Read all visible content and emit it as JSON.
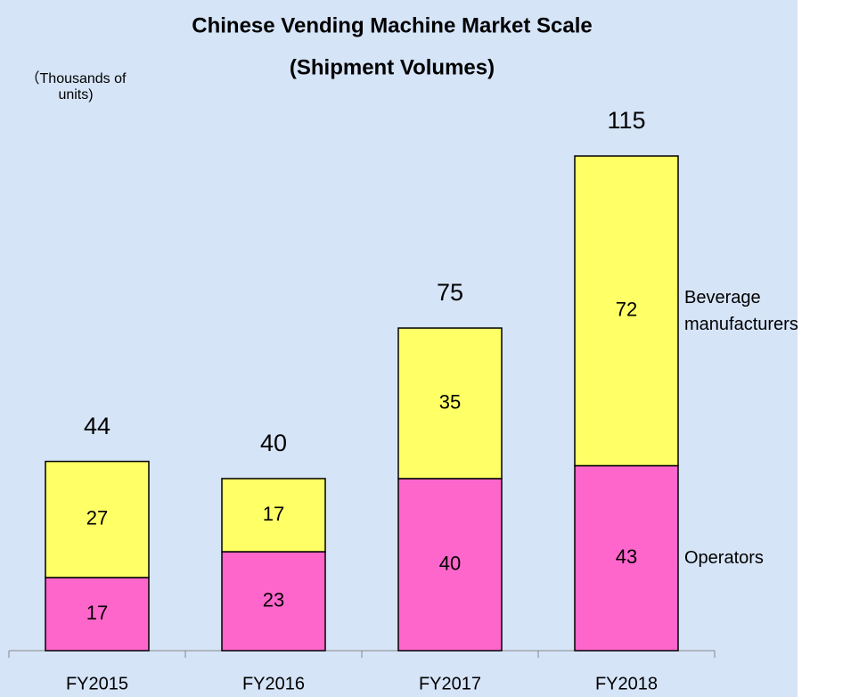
{
  "chart_data": {
    "type": "stacked_bar",
    "title": "Chinese Vending Machine Market Scale",
    "subtitle": "(Shipment Volumes)",
    "y_label": "（Thousands of units)",
    "categories": [
      "FY2015",
      "FY2016",
      "FY2017",
      "FY2018"
    ],
    "series": [
      {
        "name": "Operators",
        "color": "#ff66cc",
        "values": [
          17,
          23,
          40,
          43
        ]
      },
      {
        "name": "Beverage manufacturers",
        "color": "#ffff66",
        "values": [
          27,
          17,
          35,
          72
        ]
      }
    ],
    "totals": [
      44,
      40,
      75,
      115
    ]
  }
}
